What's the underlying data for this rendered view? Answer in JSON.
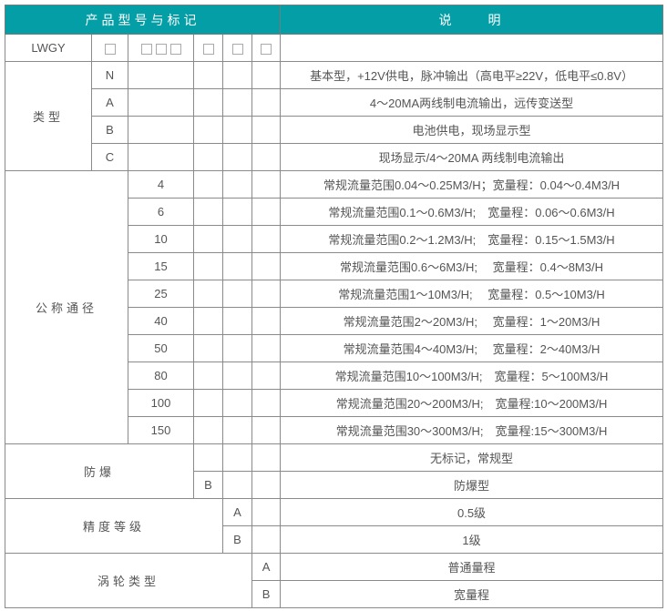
{
  "header": {
    "product": "产品型号与标记",
    "description": "说　　明"
  },
  "model": {
    "code": "LWGY",
    "placeholder_counts": [
      1,
      3,
      1,
      1,
      1
    ]
  },
  "colors": {
    "header_bg": "#049ea6",
    "text": "#555555",
    "border": "#8a8a8a"
  },
  "type": {
    "label": "类型",
    "rows": [
      {
        "code": "N",
        "desc": "基本型，+12V供电，脉冲输出（高电平≥22V，低电平≤0.8V）"
      },
      {
        "code": "A",
        "desc": "4～20MA两线制电流输出，远传变送型"
      },
      {
        "code": "B",
        "desc": "电池供电，现场显示型"
      },
      {
        "code": "C",
        "desc": "现场显示/4～20MA 两线制电流输出"
      }
    ]
  },
  "diameter": {
    "label": "公称通径",
    "rows": [
      {
        "code": "4",
        "desc": "常规流量范围0.04～0.25M3/H；宽量程：0.04～0.4M3/H"
      },
      {
        "code": "6",
        "desc": "常规流量范围0.1～0.6M3/H;　宽量程：0.06～0.6M3/H"
      },
      {
        "code": "10",
        "desc": "常规流量范围0.2～1.2M3/H;　宽量程：0.15～1.5M3/H"
      },
      {
        "code": "15",
        "desc": "常规流量范围0.6～6M3/H;　 宽量程：0.4～8M3/H"
      },
      {
        "code": "25",
        "desc": "常规流量范围1～10M3/H;　 宽量程：0.5～10M3/H"
      },
      {
        "code": "40",
        "desc": "常规流量范围2～20M3/H;　 宽量程：1～20M3/H"
      },
      {
        "code": "50",
        "desc": "常规流量范围4～40M3/H;　 宽量程：2～40M3/H"
      },
      {
        "code": "80",
        "desc": "常规流量范围10～100M3/H;　宽量程：5～100M3/H"
      },
      {
        "code": "100",
        "desc": "常规流量范围20～200M3/H;　宽量程:10～200M3/H"
      },
      {
        "code": "150",
        "desc": "常规流量范围30～300M3/H;　宽量程:15～300M3/H"
      }
    ]
  },
  "explosion": {
    "label": "防爆",
    "rows": [
      {
        "code": "",
        "desc": "无标记，常规型"
      },
      {
        "code": "B",
        "desc": "防爆型"
      }
    ]
  },
  "accuracy": {
    "label": "精度等级",
    "rows": [
      {
        "code": "A",
        "desc": "0.5级"
      },
      {
        "code": "B",
        "desc": "1级"
      }
    ]
  },
  "turbine": {
    "label": "涡轮类型",
    "rows": [
      {
        "code": "A",
        "desc": "普通量程"
      },
      {
        "code": "B",
        "desc": "宽量程"
      }
    ]
  }
}
